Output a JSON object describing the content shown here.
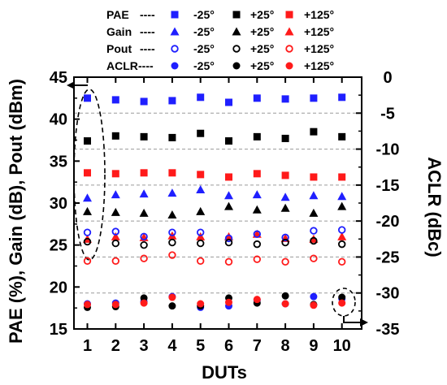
{
  "chart_data": {
    "type": "scatter",
    "title": "",
    "xlabel": "DUTs",
    "ylabel_left": "PAE (%), Gain (dB), Pout (dBm)",
    "ylabel_right": "ACLR (dBc)",
    "x": [
      1,
      2,
      3,
      4,
      5,
      6,
      7,
      8,
      9,
      10
    ],
    "x_ticks": [
      "1",
      "2",
      "3",
      "4",
      "5",
      "6",
      "7",
      "8",
      "9",
      "10"
    ],
    "ylim_left": [
      15,
      45
    ],
    "ylim_right": [
      -35,
      0
    ],
    "y_ticks_left": [
      "15",
      "20",
      "25",
      "30",
      "35",
      "40",
      "45"
    ],
    "y_ticks_right": [
      "-35",
      "-30",
      "-25",
      "-20",
      "-15",
      "-10",
      "-5",
      "0"
    ],
    "grid": "horizontal dashed",
    "legend_position": "top",
    "legend": {
      "groups": [
        {
          "label": "PAE",
          "dashes": "----"
        },
        {
          "label": "Gain",
          "dashes": "----"
        },
        {
          "label": "Pout",
          "dashes": "----"
        },
        {
          "label": "ACLR",
          "dashes": "----"
        }
      ],
      "temps": [
        "-25°",
        "+25°",
        "+125°"
      ]
    },
    "colors": {
      "-25°": "#1f1fff",
      "+25°": "#000000",
      "+125°": "#ff1a1a"
    },
    "series": [
      {
        "name": "PAE -25°",
        "group": "PAE",
        "temp": "-25°",
        "marker": "square",
        "axis": "left",
        "values": [
          42.5,
          42.3,
          42.1,
          42.2,
          42.6,
          42.0,
          42.5,
          42.4,
          42.5,
          42.6
        ]
      },
      {
        "name": "PAE +25°",
        "group": "PAE",
        "temp": "+25°",
        "marker": "square",
        "axis": "left",
        "values": [
          37.4,
          38.0,
          37.9,
          37.8,
          38.3,
          37.4,
          37.9,
          37.7,
          38.5,
          37.9
        ]
      },
      {
        "name": "PAE +125°",
        "group": "PAE",
        "temp": "+125°",
        "marker": "square",
        "axis": "left",
        "values": [
          33.6,
          33.5,
          33.6,
          33.6,
          33.4,
          33.1,
          33.5,
          33.3,
          33.1,
          33.1
        ]
      },
      {
        "name": "Gain -25°",
        "group": "Gain",
        "temp": "-25°",
        "marker": "triangle",
        "axis": "left",
        "values": [
          30.6,
          31.0,
          31.1,
          31.2,
          31.6,
          30.9,
          31.0,
          30.7,
          30.9,
          30.8
        ]
      },
      {
        "name": "Gain +25°",
        "group": "Gain",
        "temp": "+25°",
        "marker": "triangle",
        "axis": "left",
        "values": [
          29.0,
          28.9,
          28.8,
          28.6,
          29.0,
          29.6,
          29.2,
          29.4,
          28.8,
          29.6
        ]
      },
      {
        "name": "Gain +125°",
        "group": "Gain",
        "temp": "+125°",
        "marker": "triangle",
        "axis": "left",
        "values": [
          25.7,
          26.0,
          25.9,
          26.1,
          26.0,
          26.0,
          26.3,
          25.8,
          25.7,
          26.0
        ]
      },
      {
        "name": "Pout -25°",
        "group": "Pout",
        "temp": "-25°",
        "marker": "circle-open",
        "axis": "left",
        "values": [
          26.5,
          26.6,
          26.0,
          26.5,
          26.5,
          25.8,
          26.3,
          25.9,
          26.7,
          26.8
        ]
      },
      {
        "name": "Pout +25°",
        "group": "Pout",
        "temp": "+25°",
        "marker": "circle-open",
        "axis": "left",
        "values": [
          25.4,
          25.2,
          25.0,
          25.3,
          25.2,
          25.3,
          25.1,
          25.3,
          25.5,
          25.1
        ]
      },
      {
        "name": "Pout +125°",
        "group": "Pout",
        "temp": "+125°",
        "marker": "circle-open",
        "axis": "left",
        "values": [
          23.1,
          23.1,
          23.4,
          23.8,
          23.1,
          23.0,
          23.3,
          23.0,
          23.4,
          23.0
        ]
      },
      {
        "name": "ACLR -25°",
        "group": "ACLR",
        "temp": "-25°",
        "marker": "circle-filled",
        "axis": "right",
        "values": [
          -31.5,
          -31.4,
          -31.2,
          -30.5,
          -32.0,
          -31.8,
          -31.0,
          -31.5,
          -30.5,
          -30.8
        ]
      },
      {
        "name": "ACLR +25°",
        "group": "ACLR",
        "temp": "+25°",
        "marker": "circle-filled",
        "axis": "right",
        "values": [
          -32.0,
          -31.9,
          -30.7,
          -31.8,
          -31.8,
          -30.7,
          -31.4,
          -30.4,
          -31.6,
          -30.6
        ]
      },
      {
        "name": "ACLR +125°",
        "group": "ACLR",
        "temp": "+125°",
        "marker": "circle-filled",
        "axis": "right",
        "values": [
          -31.6,
          -31.6,
          -31.4,
          -30.6,
          -31.5,
          -31.3,
          -30.9,
          -31.5,
          -31.7,
          -31.4
        ]
      }
    ]
  }
}
